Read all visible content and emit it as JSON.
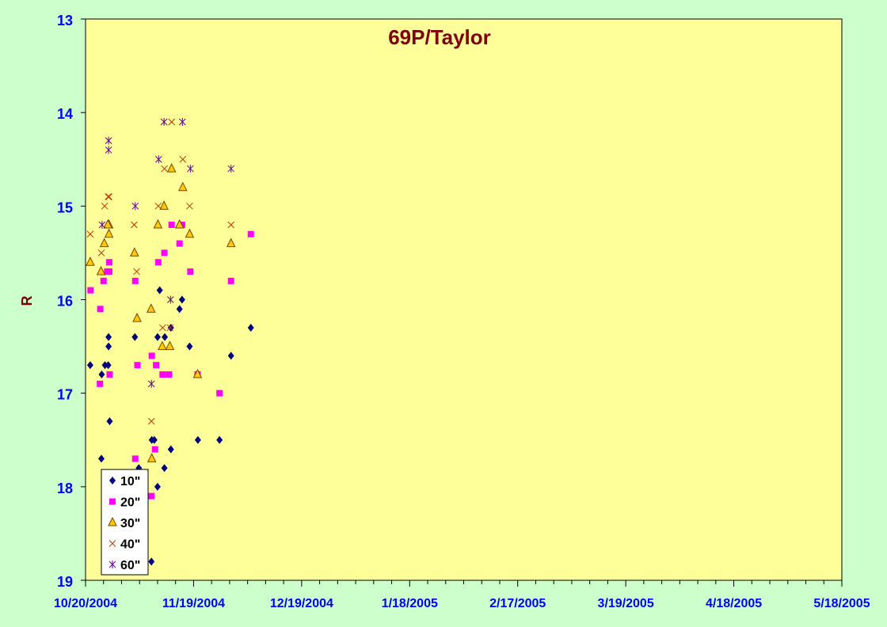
{
  "chart_data": {
    "type": "scatter",
    "title": "69P/Taylor",
    "xlabel": "",
    "ylabel": "R",
    "x_ticks": [
      "10/20/2004",
      "11/19/2004",
      "12/19/2004",
      "1/18/2005",
      "2/17/2005",
      "3/19/2005",
      "4/18/2005",
      "5/18/2005"
    ],
    "x_range_days": [
      0,
      210
    ],
    "y_ticks": [
      "13",
      "14",
      "15",
      "16",
      "17",
      "18",
      "19"
    ],
    "ylim": [
      13,
      19
    ],
    "y_inverted": true,
    "grid": false,
    "legend_position": "bottom-left",
    "colors": {
      "plot_bg": "#ffff99",
      "page_bg": "#ccffcc",
      "tick_label": "#0000ff",
      "title": "#800000",
      "axis_label": "#800000"
    },
    "series": [
      {
        "name": "10\"",
        "marker": "diamond",
        "color": "#000080",
        "points": [
          [
            -6.7,
            17.3
          ],
          [
            -23.7,
            16.3
          ],
          [
            -22,
            16.4
          ],
          [
            -20.6,
            15.9
          ],
          [
            -45.9,
            16.3
          ],
          [
            -40.4,
            16.6
          ],
          [
            -28.9,
            16.5
          ],
          [
            -26.8,
            16.0
          ],
          [
            -26.1,
            16.1
          ],
          [
            -20,
            16.4
          ],
          [
            -13.7,
            16.4
          ],
          [
            -6.4,
            16.4
          ],
          [
            -6.4,
            16.5
          ],
          [
            -1.3,
            16.7
          ],
          [
            4.5,
            16.8
          ],
          [
            5.4,
            16.7
          ],
          [
            6.3,
            16.7
          ],
          [
            -37.2,
            17.5
          ],
          [
            -31.2,
            17.5
          ],
          [
            -23.7,
            17.6
          ],
          [
            -21.9,
            17.8
          ],
          [
            -20,
            18.0
          ],
          [
            -19.1,
            17.5
          ],
          [
            -18.4,
            17.5
          ],
          [
            -14.8,
            17.8
          ],
          [
            -14.1,
            18.1
          ],
          [
            -4.4,
            17.7
          ],
          [
            18.3,
            18.8
          ]
        ]
      },
      {
        "name": "20\"",
        "marker": "square",
        "color": "#ff00ff",
        "points": [
          [
            -6.7,
            16.8
          ],
          [
            -23.9,
            15.2
          ],
          [
            -21.9,
            15.5
          ],
          [
            -45.9,
            15.3
          ],
          [
            -40.4,
            15.8
          ],
          [
            -29.1,
            15.7
          ],
          [
            -26.8,
            15.2
          ],
          [
            -26.1,
            15.4
          ],
          [
            -20.2,
            15.6
          ],
          [
            -13.8,
            15.8
          ],
          [
            -6.6,
            15.6
          ],
          [
            -6.6,
            15.7
          ],
          [
            -1.4,
            15.9
          ],
          [
            4.1,
            16.1
          ],
          [
            5.0,
            15.8
          ],
          [
            6.0,
            15.7
          ],
          [
            -37.2,
            17.0
          ],
          [
            -31.1,
            16.8
          ],
          [
            -23.2,
            16.8
          ],
          [
            -21.4,
            16.8
          ],
          [
            -19.3,
            17.6
          ],
          [
            -19.6,
            16.7
          ],
          [
            -18.4,
            16.6
          ],
          [
            -14.4,
            16.7
          ],
          [
            -13.8,
            17.7
          ],
          [
            -4.0,
            16.9
          ],
          [
            18.3,
            18.1
          ]
        ]
      },
      {
        "name": "30\"",
        "marker": "triangle",
        "color": "#ffcc00",
        "stroke": "#804000",
        "points": [
          [
            -23.9,
            14.6
          ],
          [
            -21.8,
            15.0
          ],
          [
            -40.4,
            15.4
          ],
          [
            -28.9,
            15.3
          ],
          [
            -27.0,
            14.8
          ],
          [
            -26.1,
            15.2
          ],
          [
            -20.1,
            15.2
          ],
          [
            -13.6,
            15.5
          ],
          [
            -6.5,
            15.2
          ],
          [
            -6.5,
            15.3
          ],
          [
            -1.3,
            15.6
          ],
          [
            4.3,
            15.7
          ],
          [
            5.2,
            15.4
          ],
          [
            6.2,
            15.2
          ],
          [
            -31.1,
            16.8
          ],
          [
            -23.4,
            16.5
          ],
          [
            -21.3,
            16.5
          ],
          [
            -18.2,
            16.1
          ],
          [
            -14.3,
            16.2
          ],
          [
            18.4,
            17.7
          ]
        ]
      },
      {
        "name": "40\"",
        "marker": "x",
        "color": "#cc3300",
        "points": [
          [
            -23.9,
            14.1
          ],
          [
            -21.9,
            14.6
          ],
          [
            -40.4,
            15.2
          ],
          [
            -28.9,
            15.0
          ],
          [
            -27.0,
            14.5
          ],
          [
            -20.2,
            15.0
          ],
          [
            -13.5,
            15.2
          ],
          [
            -6.5,
            14.9
          ],
          [
            -1.3,
            15.3
          ],
          [
            4.4,
            15.5
          ],
          [
            5.3,
            15.0
          ],
          [
            6.3,
            14.9
          ],
          [
            -23.5,
            16.3
          ],
          [
            -21.4,
            16.3
          ],
          [
            -14.2,
            15.7
          ],
          [
            18.3,
            17.3
          ]
        ]
      },
      {
        "name": "60\"",
        "marker": "star",
        "color": "#660099",
        "points": [
          [
            -21.8,
            14.1
          ],
          [
            -40.4,
            14.6
          ],
          [
            -29.1,
            14.6
          ],
          [
            -26.9,
            14.1
          ],
          [
            -20.3,
            14.5
          ],
          [
            -13.8,
            15.0
          ],
          [
            -6.4,
            14.3
          ],
          [
            4.6,
            15.2
          ],
          [
            6.4,
            14.4
          ],
          [
            -23.6,
            16.0
          ],
          [
            18.3,
            16.9
          ]
        ]
      }
    ]
  }
}
